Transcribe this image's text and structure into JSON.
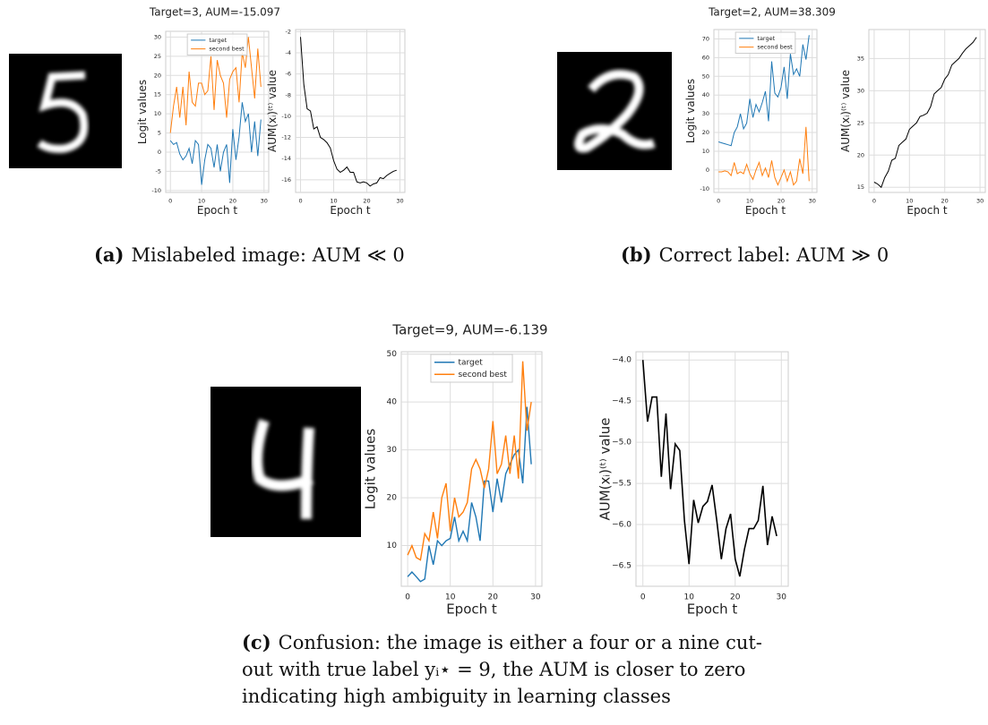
{
  "chart_data": [
    {
      "type": "line",
      "title": "Target=3, AUM=-15.097",
      "xlabel": "Epoch t",
      "ylabel": "Logit values",
      "legend": "upper center",
      "grid": true,
      "x": [
        0,
        1,
        2,
        3,
        4,
        5,
        6,
        7,
        8,
        9,
        10,
        11,
        12,
        13,
        14,
        15,
        16,
        17,
        18,
        19,
        20,
        21,
        22,
        23,
        24,
        25,
        26,
        27,
        28,
        29
      ],
      "series": [
        {
          "name": "target",
          "color": "#1f77b4",
          "values": [
            3,
            2,
            2.5,
            -0.5,
            -2,
            -1,
            1,
            -3,
            3,
            2,
            -8.5,
            -2,
            2,
            1,
            -4,
            2,
            -5,
            0,
            2,
            -8,
            6,
            -2,
            4,
            13,
            8,
            10,
            0,
            8,
            -1,
            8.5
          ]
        },
        {
          "name": "second best",
          "color": "#ff7f0e",
          "values": [
            5,
            12,
            17,
            9,
            17,
            7,
            21,
            13,
            12,
            18,
            18,
            15,
            16,
            25,
            11,
            24,
            20,
            18,
            9,
            19,
            21,
            22,
            13,
            26,
            22,
            30,
            22,
            14,
            27,
            17
          ]
        }
      ],
      "xlim": [
        -1.5,
        31.5
      ],
      "xticks": [
        0,
        10,
        20,
        30
      ],
      "ylim": [
        -10.5,
        31.5
      ],
      "yticks": [
        -10,
        -5,
        0,
        5,
        10,
        15,
        20,
        25,
        30
      ]
    },
    {
      "type": "line",
      "xlabel": "Epoch t",
      "ylabel": "AUM(xᵢ)⁽ᵗ⁾ value",
      "grid": true,
      "x": [
        0,
        1,
        2,
        3,
        4,
        5,
        6,
        7,
        8,
        9,
        10,
        11,
        12,
        13,
        14,
        15,
        16,
        17,
        18,
        19,
        20,
        21,
        22,
        23,
        24,
        25,
        26,
        27,
        28,
        29
      ],
      "series": [
        {
          "name": "AUM",
          "color": "#000000",
          "values": [
            -2.5,
            -7,
            -9.3,
            -9.5,
            -11.2,
            -11,
            -12,
            -12.2,
            -12.5,
            -13,
            -14.2,
            -15,
            -15.3,
            -15.1,
            -14.8,
            -15.3,
            -15.3,
            -16.2,
            -16.3,
            -16.2,
            -16.3,
            -16.6,
            -16.4,
            -16.3,
            -15.8,
            -15.9,
            -15.6,
            -15.4,
            -15.2,
            -15.1
          ]
        }
      ],
      "xlim": [
        -1.5,
        31.5
      ],
      "xticks": [
        0,
        10,
        20,
        30
      ],
      "ylim": [
        -17.2,
        -1.8
      ],
      "yticks": [
        -16,
        -14,
        -12,
        -10,
        -8,
        -6,
        -4,
        -2
      ]
    },
    {
      "type": "line",
      "title": "Target=2, AUM=38.309",
      "xlabel": "Epoch t",
      "ylabel": "Logit values",
      "legend": "upper center",
      "grid": true,
      "x": [
        0,
        1,
        2,
        3,
        4,
        5,
        6,
        7,
        8,
        9,
        10,
        11,
        12,
        13,
        14,
        15,
        16,
        17,
        18,
        19,
        20,
        21,
        22,
        23,
        24,
        25,
        26,
        27,
        28,
        29
      ],
      "series": [
        {
          "name": "target",
          "color": "#1f77b4",
          "values": [
            15,
            14.5,
            14,
            13.5,
            13,
            20,
            23,
            30,
            22,
            25,
            38,
            28,
            35,
            31,
            36,
            42,
            26,
            58,
            41,
            39,
            44,
            55,
            38,
            62,
            51,
            54,
            50,
            67,
            59,
            72
          ]
        },
        {
          "name": "second best",
          "color": "#ff7f0e",
          "values": [
            -1,
            -1,
            -0.5,
            -1,
            -3,
            4,
            -2,
            -1,
            -2,
            3,
            -2,
            -5,
            0,
            4,
            -3,
            1,
            -4,
            5,
            -4,
            -8,
            -4,
            0,
            -6,
            -1,
            -8,
            -6,
            6,
            -2,
            23,
            -6
          ]
        }
      ],
      "xlim": [
        -1.5,
        31.5
      ],
      "xticks": [
        0,
        10,
        20,
        30
      ],
      "ylim": [
        -12,
        75
      ],
      "yticks": [
        -10,
        0,
        10,
        20,
        30,
        40,
        50,
        60,
        70
      ]
    },
    {
      "type": "line",
      "xlabel": "Epoch t",
      "ylabel": "AUM(xᵢ)⁽ᵗ⁾ value",
      "grid": true,
      "x": [
        0,
        1,
        2,
        3,
        4,
        5,
        6,
        7,
        8,
        9,
        10,
        11,
        12,
        13,
        14,
        15,
        16,
        17,
        18,
        19,
        20,
        21,
        22,
        23,
        24,
        25,
        26,
        27,
        28,
        29
      ],
      "series": [
        {
          "name": "AUM",
          "color": "#000000",
          "values": [
            15.8,
            15.5,
            15,
            16.5,
            17.5,
            19.2,
            19.5,
            21.5,
            22,
            22.5,
            24,
            24.5,
            25,
            26,
            26.2,
            26.5,
            27.5,
            29.5,
            30,
            30.5,
            31.8,
            32.5,
            34,
            34.5,
            35,
            35.8,
            36.5,
            37,
            37.5,
            38.3
          ]
        }
      ],
      "xlim": [
        -1.5,
        31.5
      ],
      "xticks": [
        0,
        10,
        20,
        30
      ],
      "ylim": [
        14.2,
        39.5
      ],
      "yticks": [
        15,
        20,
        25,
        30,
        35
      ]
    },
    {
      "type": "line",
      "title": "Target=9, AUM=-6.139",
      "xlabel": "Epoch t",
      "ylabel": "Logit values",
      "legend": "upper center",
      "grid": true,
      "x": [
        0,
        1,
        2,
        3,
        4,
        5,
        6,
        7,
        8,
        9,
        10,
        11,
        12,
        13,
        14,
        15,
        16,
        17,
        18,
        19,
        20,
        21,
        22,
        23,
        24,
        25,
        26,
        27,
        28,
        29
      ],
      "series": [
        {
          "name": "target",
          "color": "#1f77b4",
          "values": [
            3.5,
            4.5,
            3.5,
            2.5,
            3,
            10,
            6,
            11,
            10,
            11,
            11.5,
            16,
            11,
            13,
            11,
            19,
            16,
            11,
            23.5,
            23.5,
            17,
            24,
            19,
            25,
            27,
            29,
            30,
            23,
            39,
            27
          ]
        },
        {
          "name": "second best",
          "color": "#ff7f0e",
          "values": [
            8,
            10,
            7.5,
            7,
            12.5,
            11,
            17,
            11.5,
            20,
            23,
            13,
            20,
            16,
            17,
            19,
            26,
            28,
            26,
            22,
            26,
            36,
            25,
            27,
            33,
            25,
            33,
            24,
            48.5,
            34,
            40
          ]
        }
      ],
      "xlim": [
        -1.5,
        31.5
      ],
      "xticks": [
        0,
        10,
        20,
        30
      ],
      "ylim": [
        1.5,
        50.5
      ],
      "yticks": [
        10,
        20,
        30,
        40,
        50
      ]
    },
    {
      "type": "line",
      "xlabel": "Epoch t",
      "ylabel": "AUM(xᵢ)⁽ᵗ⁾ value",
      "grid": true,
      "x": [
        0,
        1,
        2,
        3,
        4,
        5,
        6,
        7,
        8,
        9,
        10,
        11,
        12,
        13,
        14,
        15,
        16,
        17,
        18,
        19,
        20,
        21,
        22,
        23,
        24,
        25,
        26,
        27,
        28,
        29
      ],
      "series": [
        {
          "name": "AUM",
          "color": "#000000",
          "values": [
            -4,
            -4.75,
            -4.45,
            -4.45,
            -5.42,
            -4.65,
            -5.57,
            -5.02,
            -5.1,
            -5.95,
            -6.48,
            -5.7,
            -5.98,
            -5.78,
            -5.72,
            -5.52,
            -5.95,
            -6.42,
            -6.05,
            -5.87,
            -6.42,
            -6.63,
            -6.3,
            -6.05,
            -6.05,
            -5.95,
            -5.53,
            -6.25,
            -5.9,
            -6.14
          ]
        }
      ],
      "xlim": [
        -1.5,
        31.5
      ],
      "xticks": [
        0,
        10,
        20,
        30
      ],
      "ylim": [
        -6.75,
        -3.9
      ],
      "yticks": [
        {
          "value": -6.5,
          "label": "−6.5"
        },
        {
          "value": -6,
          "label": "−6.0"
        },
        {
          "value": -5.5,
          "label": "−5.5"
        },
        {
          "value": -5,
          "label": "−5.0"
        },
        {
          "value": -4.5,
          "label": "−4.5"
        },
        {
          "value": -4,
          "label": "−4.0"
        }
      ]
    }
  ],
  "captions": [
    {
      "label": "(a)",
      "text": "Mislabeled image: AUM ≪ 0"
    },
    {
      "label": "(b)",
      "text": "Correct label: AUM ≫ 0"
    },
    {
      "label": "(c)",
      "text": "Confusion: the image is either a four or a nine cut-out with true label yᵢ⋆ = 9, the AUM is closer to zero indicating high ambiguity in learning classes"
    }
  ]
}
